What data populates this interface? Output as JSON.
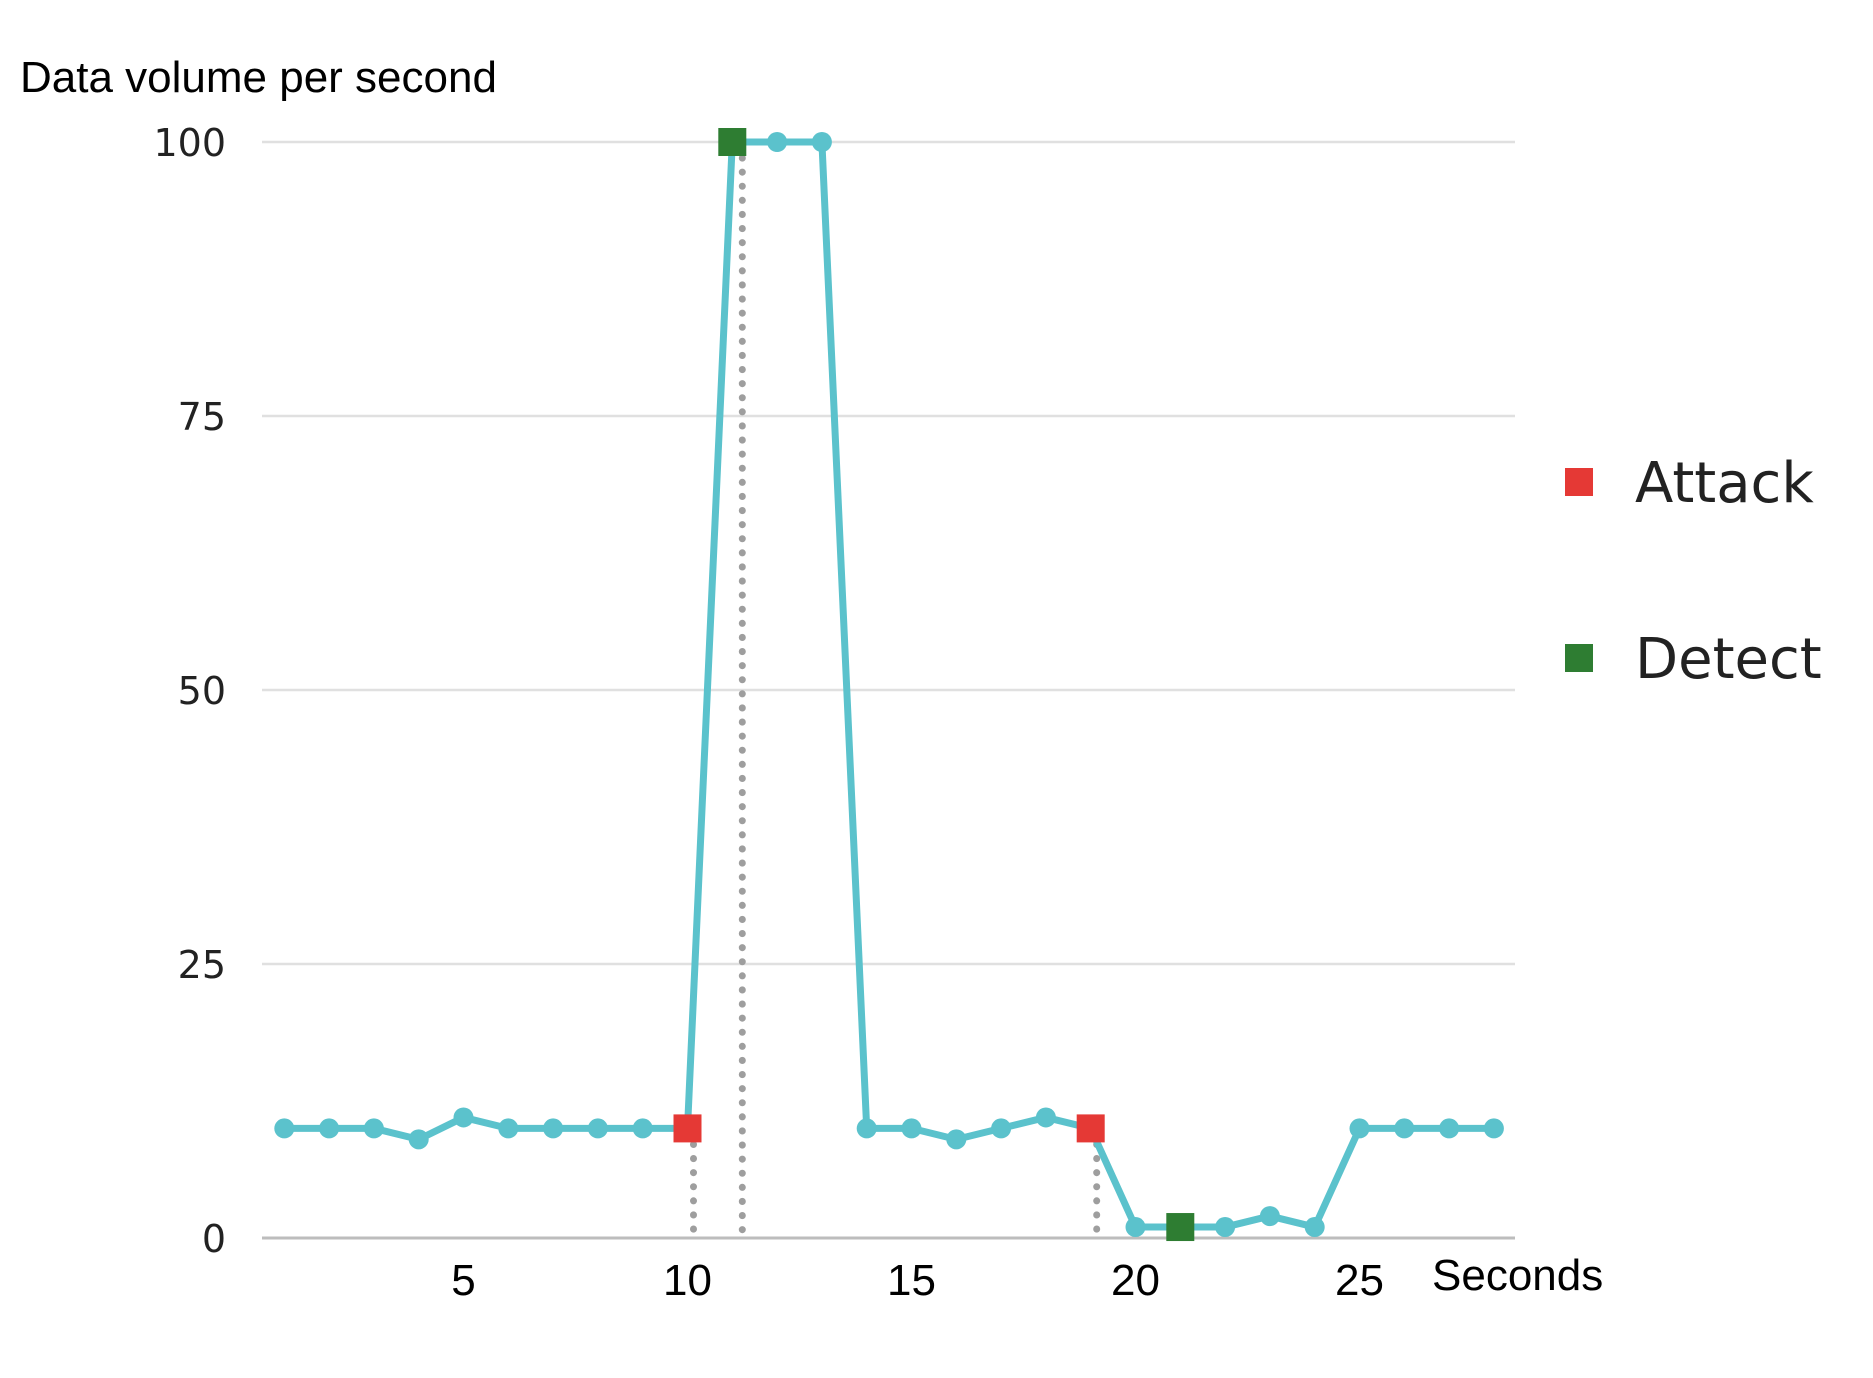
{
  "chart_data": {
    "type": "line",
    "title": "",
    "ylabel": "Data volume per second",
    "xlabel": "Seconds",
    "ylim": [
      0,
      100
    ],
    "xlim": [
      0,
      28
    ],
    "yticks": [
      0,
      25,
      50,
      75,
      100
    ],
    "xticks": [
      5,
      10,
      15,
      20,
      25
    ],
    "grid": true,
    "legend_position": "right",
    "series": [
      {
        "x": [
          1,
          2,
          3,
          4,
          5,
          6,
          7,
          8,
          9,
          10,
          11,
          12,
          13,
          14,
          15,
          16,
          17,
          18,
          19,
          20,
          21,
          22,
          23,
          24,
          25,
          26,
          27,
          28
        ],
        "values": [
          10,
          10,
          10,
          9,
          11,
          10,
          10,
          10,
          10,
          10,
          100,
          100,
          100,
          10,
          10,
          9,
          10,
          11,
          10,
          1,
          1,
          1,
          2,
          1,
          10,
          10,
          10,
          10
        ],
        "color": "#5bc2cc"
      }
    ],
    "markers": [
      {
        "category": "Attack",
        "x": 10,
        "y": 10,
        "color": "#e53935"
      },
      {
        "category": "Detect",
        "x": 11,
        "y": 100,
        "color": "#2e7d32"
      },
      {
        "category": "Attack",
        "x": 19,
        "y": 10,
        "color": "#e53935"
      },
      {
        "category": "Detect",
        "x": 21,
        "y": 1,
        "color": "#2e7d32"
      }
    ],
    "guide_lines_x": [
      10,
      11,
      19
    ],
    "legend": [
      {
        "label": "Attack",
        "color": "#e53935"
      },
      {
        "label": "Detect",
        "color": "#2e7d32"
      }
    ]
  }
}
